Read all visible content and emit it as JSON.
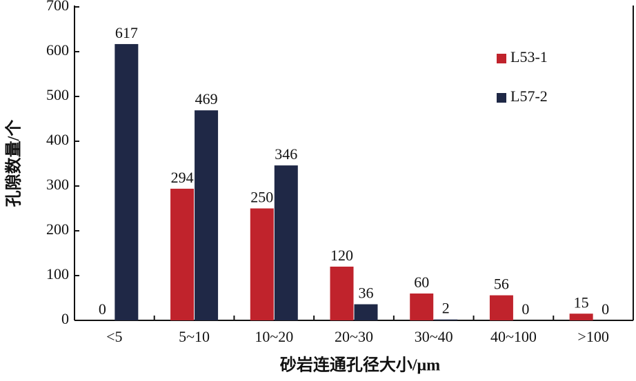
{
  "chart_data": {
    "type": "bar",
    "x_label": "砂岩连通孔径大小/μm",
    "y_label": "孔隙数量/个",
    "categories": [
      "<5",
      "5~10",
      "10~20",
      "20~30",
      "30~40",
      "40~100",
      ">100"
    ],
    "series": [
      {
        "name": "L53-1",
        "color": "#c0232c",
        "values": [
          0,
          294,
          250,
          120,
          60,
          56,
          15
        ]
      },
      {
        "name": "L57-2",
        "color": "#1f2846",
        "values": [
          617,
          469,
          346,
          36,
          2,
          0,
          0
        ]
      }
    ],
    "ylim": [
      0,
      700
    ],
    "yticks": [
      0,
      100,
      200,
      300,
      400,
      500,
      600,
      700
    ],
    "legend": "upper right"
  }
}
